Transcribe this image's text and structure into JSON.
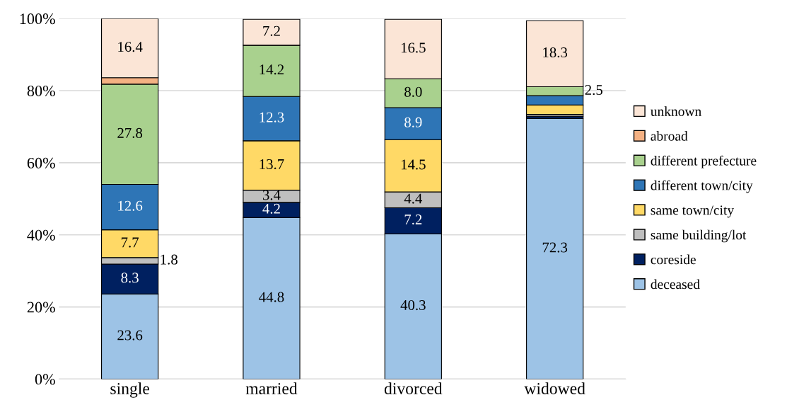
{
  "chart_data": {
    "type": "bar",
    "stacked": true,
    "categories": [
      "single",
      "married",
      "divorced",
      "widowed"
    ],
    "series": [
      {
        "name": "deceased",
        "color": "#9dc3e6",
        "values": [
          23.6,
          44.8,
          40.3,
          72.3
        ],
        "value_labels": [
          "23.6",
          "44.8",
          "40.3",
          "72.3"
        ]
      },
      {
        "name": "coreside",
        "color": "#002060",
        "values": [
          8.3,
          4.2,
          7.2,
          0.6
        ],
        "value_labels": [
          "8.3",
          "4.2",
          "7.2",
          null
        ]
      },
      {
        "name": "same building/lot",
        "color": "#bfbfbf",
        "values": [
          1.8,
          3.4,
          4.4,
          0.5
        ],
        "value_labels": [
          "1.8",
          "3.4",
          "4.4",
          null
        ]
      },
      {
        "name": "same town/city",
        "color": "#ffd966",
        "values": [
          7.7,
          13.7,
          14.5,
          2.6
        ],
        "value_labels": [
          "7.7",
          "13.7",
          "14.5",
          null
        ]
      },
      {
        "name": "different town/city",
        "color": "#2e75b6",
        "values": [
          12.6,
          12.3,
          8.9,
          2.6
        ],
        "value_labels": [
          "12.6",
          "12.3",
          "8.9",
          null
        ]
      },
      {
        "name": "different prefecture",
        "color": "#a9d18e",
        "values": [
          27.8,
          14.2,
          8.0,
          2.5
        ],
        "value_labels": [
          "27.8",
          "14.2",
          "8.0",
          "2.5"
        ]
      },
      {
        "name": "abroad",
        "color": "#f4b183",
        "values": [
          1.8,
          null,
          null,
          null
        ],
        "value_labels": [
          null,
          null,
          null,
          null
        ]
      },
      {
        "name": "unknown",
        "color": "#fbe5d6",
        "values": [
          16.4,
          7.2,
          16.5,
          18.3
        ],
        "value_labels": [
          "16.4",
          "7.2",
          "16.5",
          "18.3"
        ]
      }
    ],
    "ylim": [
      0,
      100
    ],
    "yticks": [
      {
        "value": 0,
        "label": "0%"
      },
      {
        "value": 20,
        "label": "20%"
      },
      {
        "value": 40,
        "label": "40%"
      },
      {
        "value": 60,
        "label": "60%"
      },
      {
        "value": 80,
        "label": "80%"
      },
      {
        "value": 100,
        "label": "100%"
      }
    ],
    "grid": "y",
    "legend": "right"
  }
}
